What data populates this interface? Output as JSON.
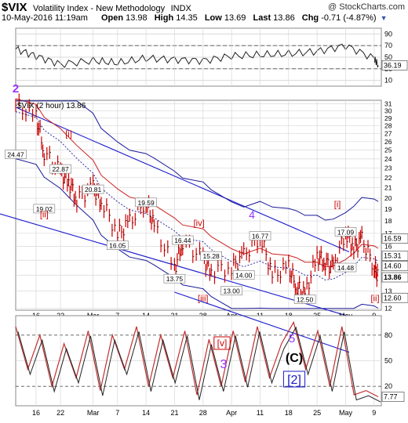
{
  "header": {
    "symbol": "$VIX",
    "name": "Volatility Index - New Methodology",
    "exchange": "INDX",
    "watermark": "@ StockCharts.com",
    "datetime": "10-May-2016 11:19am",
    "open_label": "Open",
    "open": "13.98",
    "high_label": "High",
    "high": "14.35",
    "low_label": "Low",
    "low": "13.69",
    "last_label": "Last",
    "last": "13.86",
    "chg_label": "Chg",
    "chg": "-0.71 (-4.87%)"
  },
  "colors": {
    "price": "#cc0000",
    "trend_line": "#1a1acc",
    "bollinger": "#1a1a99",
    "moving_avg": "#cc2222",
    "wave_primary": "#9933ff",
    "wave_minor": "#cc0000",
    "wave_intermediate": "#1a1acc",
    "grid": "#d8d8d8"
  },
  "chart_data": [
    {
      "type": "line",
      "panel": "rsi",
      "ylim": [
        0,
        100
      ],
      "yticks": [
        10,
        30,
        50,
        70,
        90
      ],
      "reference_lines": [
        30,
        70
      ],
      "last_value_label": "36.19",
      "x": [
        "Feb 11",
        "Feb 16",
        "Feb 22",
        "Mar 1",
        "Mar 7",
        "Mar 14",
        "Mar 21",
        "Mar 28",
        "Apr 4",
        "Apr 11",
        "Apr 18",
        "Apr 25",
        "May 2",
        "May 9",
        "May 10"
      ],
      "values": [
        64,
        52,
        38,
        44,
        40,
        48,
        46,
        44,
        52,
        54,
        56,
        60,
        70,
        48,
        36
      ]
    },
    {
      "type": "line",
      "panel": "price",
      "title": "$VIX (2 hour) 13.86",
      "yscale": "log",
      "ylim": [
        11.9,
        31.5
      ],
      "yticks": [
        12,
        13,
        14,
        15,
        16,
        17,
        18,
        19,
        20,
        21,
        22,
        23,
        24,
        25,
        26,
        27,
        28,
        29,
        30,
        31
      ],
      "x_tick_labels": [
        "16",
        "22",
        "Mar",
        "7",
        "14",
        "21",
        "28",
        "Apr",
        "11",
        "18",
        "25",
        "May",
        "9"
      ],
      "x": [
        "Feb 11",
        "Feb 16",
        "Feb 18",
        "Feb 22",
        "Feb 24",
        "Feb 26",
        "Mar 1",
        "Mar 3",
        "Mar 7",
        "Mar 10",
        "Mar 14",
        "Mar 16",
        "Mar 21",
        "Mar 23",
        "Mar 28",
        "Mar 30",
        "Apr 4",
        "Apr 7",
        "Apr 11",
        "Apr 14",
        "Apr 18",
        "Apr 20",
        "Apr 22",
        "Apr 25",
        "Apr 27",
        "Apr 29",
        "May 2",
        "May 4",
        "May 6",
        "May 9",
        "May 10"
      ],
      "series": [
        {
          "name": "$VIX (2 hour)",
          "values": [
            30.8,
            29.2,
            24.8,
            22.5,
            21.6,
            19.9,
            21.0,
            19.8,
            16.9,
            17.9,
            19.8,
            17.5,
            14.4,
            16.4,
            15.1,
            14.3,
            14.5,
            15.3,
            16.8,
            14.0,
            14.5,
            13.3,
            12.7,
            15.3,
            14.9,
            14.4,
            17.1,
            15.9,
            16.5,
            14.6,
            13.86
          ]
        }
      ],
      "price_labels": [
        "24.47",
        "22.87",
        "20.81",
        "19.02",
        "19.59",
        "16.05",
        "16.44",
        "15.28",
        "16.77",
        "14.00",
        "13.75",
        "13.00",
        "12.50",
        "17.09",
        "14.48"
      ],
      "price_label_points": [
        {
          "x": "Feb 11",
          "y": 24.47
        },
        {
          "x": "Feb 22",
          "y": 22.87
        },
        {
          "x": "Mar 1",
          "y": 20.81
        },
        {
          "x": "Feb 18",
          "y": 19.02
        },
        {
          "x": "Mar 14",
          "y": 19.59
        },
        {
          "x": "Mar 7",
          "y": 16.05
        },
        {
          "x": "Mar 23",
          "y": 16.44
        },
        {
          "x": "Mar 30",
          "y": 15.28
        },
        {
          "x": "Apr 11",
          "y": 16.77
        },
        {
          "x": "Apr 7",
          "y": 14.0
        },
        {
          "x": "Mar 21",
          "y": 13.75
        },
        {
          "x": "Apr 4",
          "y": 13.0
        },
        {
          "x": "Apr 22",
          "y": 12.5
        },
        {
          "x": "May 2",
          "y": 17.09
        },
        {
          "x": "May 2",
          "y": 14.48
        }
      ],
      "right_axis_labels": [
        "16.59",
        "15.31",
        "14.60",
        "13.86",
        "12.60"
      ],
      "wave_labels": [
        "2",
        "[i]",
        "[ii]",
        "[iii]",
        "[iv]",
        "4",
        "[i]",
        "[ii]"
      ]
    },
    {
      "type": "line",
      "panel": "stochastic",
      "ylim": [
        0,
        100
      ],
      "yticks": [
        20,
        50,
        80
      ],
      "last_value_label": "7.77",
      "x_tick_labels": [
        "16",
        "22",
        "Mar",
        "7",
        "14",
        "21",
        "28",
        "Apr",
        "11",
        "18",
        "25",
        "May",
        "9"
      ],
      "values": [
        90,
        40,
        80,
        20,
        70,
        30,
        85,
        15,
        80,
        40,
        90,
        20,
        80,
        30,
        85,
        10,
        75,
        20,
        85,
        25,
        90,
        30,
        70,
        95,
        40,
        85,
        20,
        90,
        10,
        15,
        7.77
      ],
      "wave_labels": [
        "[v]",
        "3",
        "5",
        "(C)",
        "[2]"
      ]
    }
  ]
}
